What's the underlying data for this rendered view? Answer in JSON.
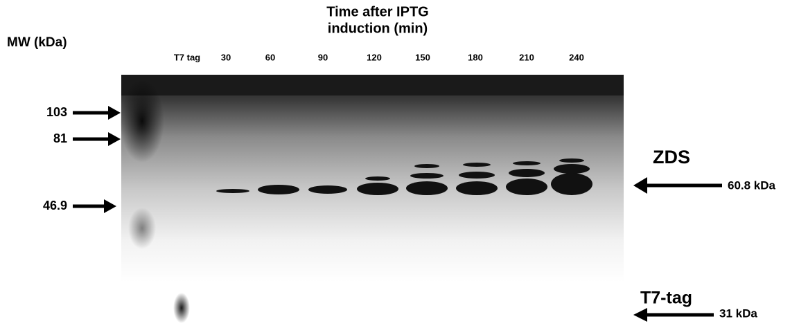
{
  "header": {
    "title_lines": [
      "Time after IPTG",
      "induction (min)"
    ],
    "mw_label": "MW (kDa)"
  },
  "lanes": [
    "T7 tag",
    "30",
    "60",
    "90",
    "120",
    "150",
    "180",
    "210",
    "240"
  ],
  "markers": [
    "103",
    "81",
    "46.9"
  ],
  "annotations": {
    "zds": "ZDS",
    "zds_size": "60.8 kDa",
    "tag": "T7-tag",
    "tag_size": "31 kDa"
  }
}
